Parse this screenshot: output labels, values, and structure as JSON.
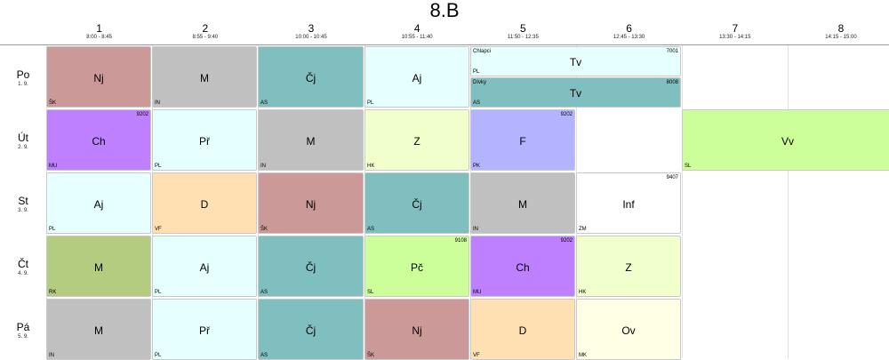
{
  "class_title": "8.B",
  "periods": [
    {
      "number": "1",
      "time": "8:00 - 8:45"
    },
    {
      "number": "2",
      "time": "8:55 - 9:40"
    },
    {
      "number": "3",
      "time": "10:00 - 10:45"
    },
    {
      "number": "4",
      "time": "10:55 - 11:40"
    },
    {
      "number": "5",
      "time": "11:50 - 12:35"
    },
    {
      "number": "6",
      "time": "12:45 - 13:30"
    },
    {
      "number": "7",
      "time": "13:30 - 14:15"
    },
    {
      "number": "8",
      "time": "14:15 - 15:00"
    }
  ],
  "days": [
    {
      "day": "Po",
      "date": "1. 9.",
      "lessons": [
        {
          "period": 1,
          "subject": "Nj",
          "teacher": "ŠK",
          "room": "",
          "group": "",
          "color": "#cc9999"
        },
        {
          "period": 2,
          "subject": "M",
          "teacher": "IN",
          "room": "",
          "group": "",
          "color": "#c0c0c0"
        },
        {
          "period": 3,
          "subject": "Čj",
          "teacher": "AS",
          "room": "",
          "group": "",
          "color": "#80bfbf"
        },
        {
          "period": 4,
          "subject": "Aj",
          "teacher": "PL",
          "room": "",
          "group": "",
          "color": "#e6ffff"
        },
        {
          "period": 5,
          "span": 2,
          "half": "top",
          "subject": "Tv",
          "teacher": "PL",
          "room": "7001",
          "group": "Chlapci",
          "color": "#e6ffff"
        },
        {
          "period": 5,
          "span": 2,
          "half": "bottom",
          "subject": "Tv",
          "teacher": "AS",
          "room": "8008",
          "group": "Dívky",
          "color": "#80bfbf"
        }
      ]
    },
    {
      "day": "Út",
      "date": "2. 9.",
      "lessons": [
        {
          "period": 1,
          "subject": "Ch",
          "teacher": "MU",
          "room": "9202",
          "group": "",
          "color": "#bf80ff"
        },
        {
          "period": 2,
          "subject": "Př",
          "teacher": "PL",
          "room": "",
          "group": "",
          "color": "#e6ffff"
        },
        {
          "period": 3,
          "subject": "M",
          "teacher": "IN",
          "room": "",
          "group": "",
          "color": "#c0c0c0"
        },
        {
          "period": 4,
          "subject": "Z",
          "teacher": "HK",
          "room": "",
          "group": "",
          "color": "#f0ffcc"
        },
        {
          "period": 5,
          "subject": "F",
          "teacher": "PK",
          "room": "9202",
          "group": "",
          "color": "#b3b3ff"
        },
        {
          "period": 7,
          "span": 2,
          "subject": "Vv",
          "teacher": "SL",
          "room": "",
          "group": "",
          "color": "#ccff99"
        }
      ]
    },
    {
      "day": "St",
      "date": "3. 9.",
      "lessons": [
        {
          "period": 1,
          "subject": "Aj",
          "teacher": "PL",
          "room": "",
          "group": "",
          "color": "#e6ffff"
        },
        {
          "period": 2,
          "subject": "D",
          "teacher": "VF",
          "room": "",
          "group": "",
          "color": "#ffe0b3"
        },
        {
          "period": 3,
          "subject": "Nj",
          "teacher": "ŠK",
          "room": "",
          "group": "",
          "color": "#cc9999"
        },
        {
          "period": 4,
          "subject": "Čj",
          "teacher": "AS",
          "room": "",
          "group": "",
          "color": "#80bfbf"
        },
        {
          "period": 5,
          "subject": "M",
          "teacher": "IN",
          "room": "",
          "group": "",
          "color": "#c0c0c0"
        },
        {
          "period": 6,
          "subject": "Inf",
          "teacher": "ZM",
          "room": "9407",
          "group": "",
          "color": "#ffffff"
        }
      ]
    },
    {
      "day": "Čt",
      "date": "4. 9.",
      "lessons": [
        {
          "period": 1,
          "subject": "M",
          "teacher": "RK",
          "room": "",
          "group": "",
          "color": "#b3cc80"
        },
        {
          "period": 2,
          "subject": "Aj",
          "teacher": "PL",
          "room": "",
          "group": "",
          "color": "#e6ffff"
        },
        {
          "period": 3,
          "subject": "Čj",
          "teacher": "AS",
          "room": "",
          "group": "",
          "color": "#80bfbf"
        },
        {
          "period": 4,
          "subject": "Pč",
          "teacher": "SL",
          "room": "9108",
          "group": "",
          "color": "#ccff99"
        },
        {
          "period": 5,
          "subject": "Ch",
          "teacher": "MU",
          "room": "9202",
          "group": "",
          "color": "#bf80ff"
        },
        {
          "period": 6,
          "subject": "Z",
          "teacher": "HK",
          "room": "",
          "group": "",
          "color": "#f0ffcc"
        }
      ]
    },
    {
      "day": "Pá",
      "date": "5. 9.",
      "lessons": [
        {
          "period": 1,
          "subject": "M",
          "teacher": "IN",
          "room": "",
          "group": "",
          "color": "#c0c0c0"
        },
        {
          "period": 2,
          "subject": "Př",
          "teacher": "PL",
          "room": "",
          "group": "",
          "color": "#e6ffff"
        },
        {
          "period": 3,
          "subject": "Čj",
          "teacher": "AS",
          "room": "",
          "group": "",
          "color": "#80bfbf"
        },
        {
          "period": 4,
          "subject": "Nj",
          "teacher": "ŠK",
          "room": "",
          "group": "",
          "color": "#cc9999"
        },
        {
          "period": 5,
          "subject": "D",
          "teacher": "VF",
          "room": "",
          "group": "",
          "color": "#ffe0b3"
        },
        {
          "period": 6,
          "subject": "Ov",
          "teacher": "MK",
          "room": "",
          "group": "",
          "color": "#ffffe6"
        }
      ]
    }
  ]
}
